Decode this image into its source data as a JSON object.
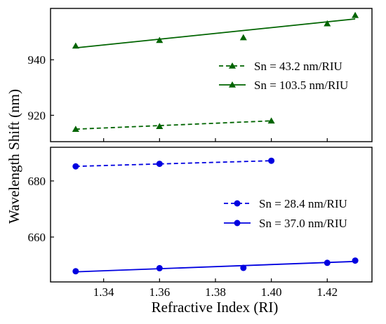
{
  "chart_data": [
    {
      "type": "line",
      "title": "",
      "xlabel": "",
      "ylabel": "",
      "xlim": [
        1.321,
        1.436
      ],
      "ylim": [
        910.5,
        958.5
      ],
      "yticks": [
        920,
        940
      ],
      "grid": false,
      "legend_placement": "right",
      "series": [
        {
          "name": "Sn = 43.2 nm/RIU",
          "color": "#006400",
          "marker": "triangle",
          "line": "dashed",
          "x": [
            1.33,
            1.36,
            1.4
          ],
          "y": [
            915.0,
            916.0,
            918.0
          ],
          "fit": {
            "x": [
              1.33,
              1.4
            ],
            "y": [
              915.0,
              918.0
            ]
          }
        },
        {
          "name": "Sn = 103.5 nm/RIU",
          "color": "#006400",
          "marker": "triangle",
          "line": "solid",
          "x": [
            1.33,
            1.36,
            1.39,
            1.42,
            1.43
          ],
          "y": [
            945.0,
            947.0,
            948.0,
            953.0,
            956.0
          ],
          "fit": {
            "x": [
              1.33,
              1.43
            ],
            "y": [
              944.3,
              954.7
            ]
          }
        }
      ]
    },
    {
      "type": "line",
      "title": "",
      "xlabel": "",
      "ylabel": "",
      "xlim": [
        1.321,
        1.436
      ],
      "ylim": [
        644,
        692
      ],
      "yticks": [
        660,
        680
      ],
      "grid": false,
      "legend_placement": "right",
      "series": [
        {
          "name": "Sn = 28.4 nm/RIU",
          "color": "#0000e0",
          "marker": "circle",
          "line": "dashed",
          "x": [
            1.33,
            1.36,
            1.4
          ],
          "y": [
            685.2,
            686.1,
            687.2
          ],
          "fit": {
            "x": [
              1.33,
              1.4
            ],
            "y": [
              685.2,
              687.2
            ]
          }
        },
        {
          "name": "Sn = 37.0 nm/RIU",
          "color": "#0000e0",
          "marker": "circle",
          "line": "solid",
          "x": [
            1.33,
            1.36,
            1.39,
            1.42,
            1.43
          ],
          "y": [
            647.8,
            648.9,
            649.0,
            650.8,
            651.6
          ],
          "fit": {
            "x": [
              1.33,
              1.43
            ],
            "y": [
              647.6,
              651.3
            ]
          }
        }
      ]
    }
  ],
  "shared_axes": {
    "xlabel": "Refractive Index (RI)",
    "ylabel": "Wavelength Shift (nm)",
    "xticks": [
      1.34,
      1.36,
      1.38,
      1.4,
      1.42
    ],
    "xtick_labels": [
      "1.34",
      "1.36",
      "1.38",
      "1.40",
      "1.42"
    ]
  }
}
